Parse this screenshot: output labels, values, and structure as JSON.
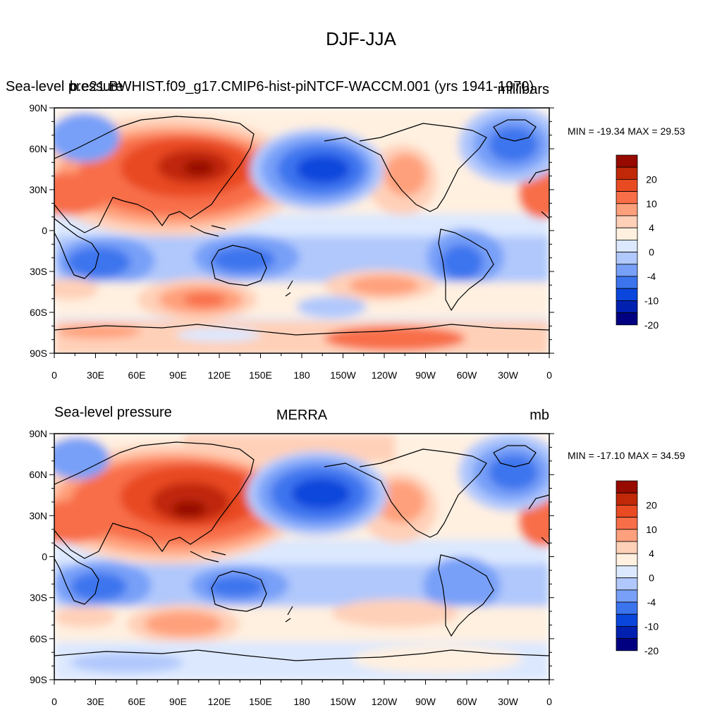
{
  "page_title": "DJF-JJA",
  "colors": {
    "scale": [
      "#000080",
      "#0020b0",
      "#0a46dc",
      "#3c74ee",
      "#78a0f8",
      "#b0c8fc",
      "#dce8fe",
      "#fff0e0",
      "#ffd0b8",
      "#ffa07c",
      "#f86e48",
      "#e84a22",
      "#c02808",
      "#960a00"
    ]
  },
  "legend_labels": [
    "20",
    "10",
    "4",
    "0",
    "-4",
    "-10",
    "-20"
  ],
  "longitude_ticks": [
    "0",
    "30E",
    "60E",
    "90E",
    "120E",
    "150E",
    "180",
    "150W",
    "120W",
    "90W",
    "60W",
    "30W",
    "0"
  ],
  "latitude_ticks": [
    "90N",
    "60N",
    "30N",
    "0",
    "30S",
    "60S",
    "90S"
  ],
  "panels": [
    {
      "left_title": "Sea-level pressure",
      "center_title": "b.e21.BWHIST.f09_g17.CMIP6-hist-piNTCF-WACCM.001 (yrs 1941-1970)",
      "right_title": "millibars",
      "minmax": "MIN = -19.34 MAX =  29.53"
    },
    {
      "left_title": "Sea-level pressure",
      "center_title": "MERRA",
      "right_title": "mb",
      "minmax": "MIN = -17.10 MAX =  34.59"
    }
  ]
}
